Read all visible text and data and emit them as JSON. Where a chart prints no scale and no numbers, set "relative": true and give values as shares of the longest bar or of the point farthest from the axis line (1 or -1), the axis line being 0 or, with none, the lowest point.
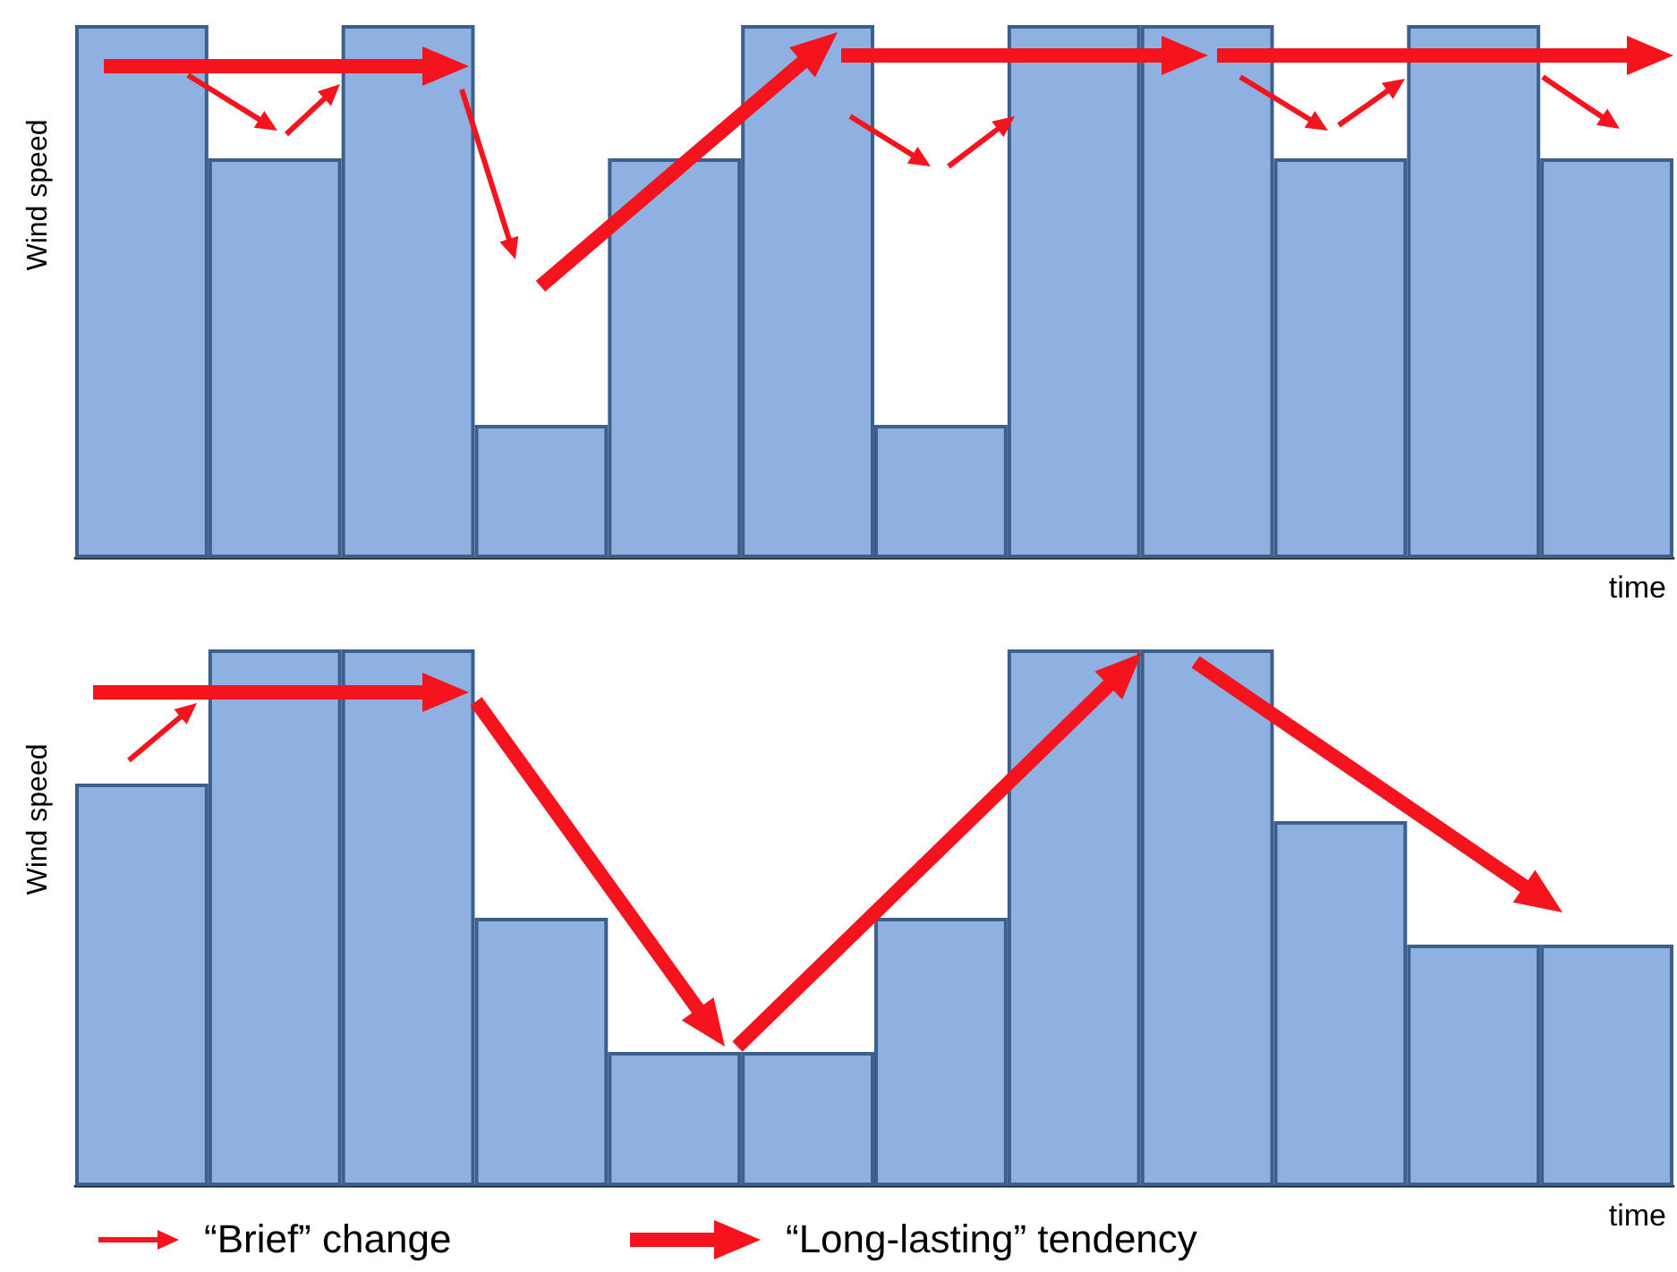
{
  "chart_data": [
    {
      "type": "bar",
      "ylabel": "Wind speed",
      "xlabel": "time",
      "relative": true,
      "grid": false,
      "color": "#8eb1e1",
      "categories": [
        null,
        null,
        null,
        null,
        null,
        null,
        null,
        null,
        null,
        null,
        null,
        null
      ],
      "values": [
        1,
        0.75,
        1,
        0.25,
        0.75,
        1,
        0.25,
        1,
        1,
        0.75,
        1,
        0.75
      ]
    },
    {
      "type": "bar",
      "ylabel": "Wind speed",
      "xlabel": "time",
      "relative": true,
      "grid": false,
      "color": "#8eb1e1",
      "categories": [
        null,
        null,
        null,
        null,
        null,
        null,
        null,
        null,
        null,
        null,
        null,
        null
      ],
      "values": [
        0.75,
        1,
        1,
        0.5,
        0.25,
        0.25,
        0.5,
        1,
        1,
        0.68,
        0.45,
        0.45
      ],
      "annotations": [
        "“Brief” change",
        "“Long-lasting” tendency"
      ]
    }
  ]
}
